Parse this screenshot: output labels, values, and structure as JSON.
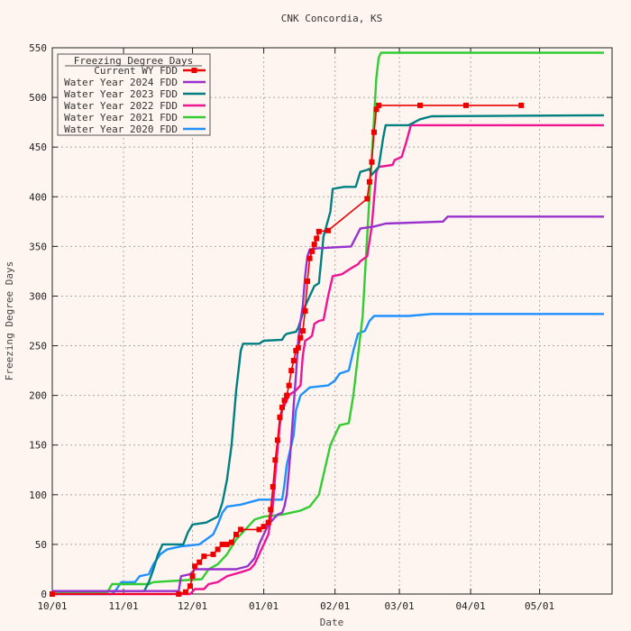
{
  "chart_data": {
    "type": "line",
    "title": "CNK Concordia, KS",
    "xlabel": "Date",
    "ylabel": "Freezing Degree Days",
    "xlim": [
      "10/01",
      "end"
    ],
    "ylim": [
      0,
      550
    ],
    "yticks": [
      0,
      50,
      100,
      150,
      200,
      250,
      300,
      350,
      400,
      450,
      500,
      550
    ],
    "xticks": [
      "10/01",
      "11/01",
      "12/01",
      "01/01",
      "02/01",
      "03/01",
      "04/01",
      "05/01"
    ],
    "grid": true,
    "legend": {
      "title": "Freezing Degree Days",
      "placement": "top-left"
    },
    "series": [
      {
        "name": "Current WY FDD",
        "color": "#ee0000",
        "markers": true,
        "points": [
          [
            0,
            0
          ],
          [
            55,
            0
          ],
          [
            58,
            2
          ],
          [
            60,
            8
          ],
          [
            61,
            18
          ],
          [
            62,
            28
          ],
          [
            64,
            32
          ],
          [
            66,
            38
          ],
          [
            70,
            40
          ],
          [
            72,
            45
          ],
          [
            74,
            50
          ],
          [
            76,
            50
          ],
          [
            78,
            52
          ],
          [
            80,
            60
          ],
          [
            82,
            65
          ],
          [
            90,
            65
          ],
          [
            92,
            68
          ],
          [
            94,
            72
          ],
          [
            95,
            85
          ],
          [
            96,
            108
          ],
          [
            97,
            135
          ],
          [
            98,
            155
          ],
          [
            99,
            178
          ],
          [
            100,
            188
          ],
          [
            101,
            195
          ],
          [
            102,
            200
          ],
          [
            103,
            210
          ],
          [
            104,
            225
          ],
          [
            105,
            235
          ],
          [
            106,
            245
          ],
          [
            107,
            248
          ],
          [
            108,
            258
          ],
          [
            109,
            265
          ],
          [
            110,
            285
          ],
          [
            111,
            315
          ],
          [
            112,
            338
          ],
          [
            113,
            345
          ],
          [
            114,
            352
          ],
          [
            115,
            358
          ],
          [
            116,
            365
          ],
          [
            120,
            366
          ],
          [
            137,
            398
          ],
          [
            138,
            415
          ],
          [
            139,
            435
          ],
          [
            140,
            465
          ],
          [
            141,
            488
          ],
          [
            142,
            492
          ],
          [
            160,
            492
          ],
          [
            180,
            492
          ],
          [
            204,
            492
          ]
        ]
      },
      {
        "name": "Water Year 2024 FDD",
        "color": "#9932cc",
        "markers": false,
        "points": [
          [
            0,
            3
          ],
          [
            55,
            3
          ],
          [
            56,
            18
          ],
          [
            60,
            20
          ],
          [
            62,
            25
          ],
          [
            80,
            25
          ],
          [
            85,
            28
          ],
          [
            88,
            36
          ],
          [
            90,
            50
          ],
          [
            92,
            60
          ],
          [
            94,
            70
          ],
          [
            96,
            75
          ],
          [
            98,
            80
          ],
          [
            100,
            82
          ],
          [
            101,
            88
          ],
          [
            102,
            100
          ],
          [
            103,
            125
          ],
          [
            104,
            155
          ],
          [
            105,
            190
          ],
          [
            106,
            220
          ],
          [
            107,
            255
          ],
          [
            108,
            275
          ],
          [
            109,
            290
          ],
          [
            110,
            320
          ],
          [
            111,
            340
          ],
          [
            112,
            347
          ],
          [
            115,
            348
          ],
          [
            130,
            350
          ],
          [
            134,
            368
          ],
          [
            140,
            370
          ],
          [
            145,
            373
          ],
          [
            170,
            375
          ],
          [
            172,
            380
          ],
          [
            240,
            380
          ]
        ]
      },
      {
        "name": "Water Year 2023 FDD",
        "color": "#008080",
        "markers": false,
        "points": [
          [
            0,
            3
          ],
          [
            40,
            3
          ],
          [
            42,
            12
          ],
          [
            44,
            25
          ],
          [
            46,
            40
          ],
          [
            48,
            50
          ],
          [
            57,
            50
          ],
          [
            59,
            62
          ],
          [
            61,
            70
          ],
          [
            67,
            72
          ],
          [
            72,
            78
          ],
          [
            74,
            92
          ],
          [
            76,
            115
          ],
          [
            78,
            150
          ],
          [
            80,
            205
          ],
          [
            82,
            245
          ],
          [
            83,
            252
          ],
          [
            90,
            252
          ],
          [
            92,
            255
          ],
          [
            100,
            256
          ],
          [
            101,
            260
          ],
          [
            102,
            262
          ],
          [
            106,
            264
          ],
          [
            107,
            268
          ],
          [
            108,
            275
          ],
          [
            110,
            290
          ],
          [
            112,
            300
          ],
          [
            114,
            310
          ],
          [
            116,
            313
          ],
          [
            118,
            360
          ],
          [
            121,
            385
          ],
          [
            122,
            408
          ],
          [
            127,
            410
          ],
          [
            132,
            410
          ],
          [
            134,
            425
          ],
          [
            137,
            427
          ],
          [
            138,
            428
          ],
          [
            139,
            422
          ],
          [
            142,
            430
          ],
          [
            144,
            460
          ],
          [
            145,
            472
          ],
          [
            155,
            472
          ],
          [
            160,
            478
          ],
          [
            165,
            481
          ],
          [
            240,
            482
          ]
        ]
      },
      {
        "name": "Water Year 2022 FDD",
        "color": "#ee1493",
        "markers": false,
        "points": [
          [
            0,
            0
          ],
          [
            60,
            0
          ],
          [
            62,
            5
          ],
          [
            66,
            5
          ],
          [
            68,
            10
          ],
          [
            72,
            12
          ],
          [
            76,
            18
          ],
          [
            79,
            20
          ],
          [
            82,
            22
          ],
          [
            86,
            25
          ],
          [
            88,
            30
          ],
          [
            90,
            40
          ],
          [
            92,
            50
          ],
          [
            94,
            60
          ],
          [
            96,
            90
          ],
          [
            97,
            120
          ],
          [
            98,
            145
          ],
          [
            99,
            170
          ],
          [
            100,
            185
          ],
          [
            101,
            190
          ],
          [
            102,
            195
          ],
          [
            103,
            200
          ],
          [
            104,
            202
          ],
          [
            106,
            205
          ],
          [
            108,
            210
          ],
          [
            109,
            240
          ],
          [
            110,
            255
          ],
          [
            112,
            258
          ],
          [
            113,
            260
          ],
          [
            114,
            272
          ],
          [
            116,
            275
          ],
          [
            118,
            276
          ],
          [
            120,
            300
          ],
          [
            122,
            320
          ],
          [
            126,
            322
          ],
          [
            130,
            328
          ],
          [
            133,
            332
          ],
          [
            134,
            335
          ],
          [
            137,
            340
          ],
          [
            139,
            370
          ],
          [
            141,
            425
          ],
          [
            142,
            430
          ],
          [
            148,
            432
          ],
          [
            149,
            437
          ],
          [
            152,
            440
          ],
          [
            154,
            455
          ],
          [
            156,
            472
          ],
          [
            240,
            472
          ]
        ]
      },
      {
        "name": "Water Year 2021 FDD",
        "color": "#32cd32",
        "markers": false,
        "points": [
          [
            0,
            2
          ],
          [
            24,
            2
          ],
          [
            26,
            10
          ],
          [
            42,
            10
          ],
          [
            44,
            12
          ],
          [
            65,
            15
          ],
          [
            68,
            25
          ],
          [
            72,
            30
          ],
          [
            76,
            40
          ],
          [
            80,
            55
          ],
          [
            82,
            60
          ],
          [
            84,
            65
          ],
          [
            86,
            70
          ],
          [
            88,
            75
          ],
          [
            92,
            78
          ],
          [
            100,
            80
          ],
          [
            104,
            82
          ],
          [
            108,
            84
          ],
          [
            112,
            88
          ],
          [
            116,
            100
          ],
          [
            119,
            130
          ],
          [
            121,
            150
          ],
          [
            123,
            160
          ],
          [
            125,
            170
          ],
          [
            129,
            172
          ],
          [
            131,
            200
          ],
          [
            133,
            240
          ],
          [
            135,
            280
          ],
          [
            136,
            320
          ],
          [
            137,
            360
          ],
          [
            138,
            400
          ],
          [
            139,
            440
          ],
          [
            140,
            480
          ],
          [
            141,
            520
          ],
          [
            142,
            540
          ],
          [
            143,
            545
          ],
          [
            240,
            545
          ]
        ]
      },
      {
        "name": "Water Year 2020 FDD",
        "color": "#1e90ff",
        "markers": false,
        "points": [
          [
            0,
            0
          ],
          [
            26,
            0
          ],
          [
            28,
            5
          ],
          [
            30,
            12
          ],
          [
            36,
            12
          ],
          [
            38,
            18
          ],
          [
            42,
            20
          ],
          [
            44,
            30
          ],
          [
            47,
            40
          ],
          [
            50,
            45
          ],
          [
            56,
            48
          ],
          [
            64,
            50
          ],
          [
            67,
            55
          ],
          [
            70,
            60
          ],
          [
            72,
            70
          ],
          [
            74,
            82
          ],
          [
            76,
            88
          ],
          [
            82,
            90
          ],
          [
            90,
            95
          ],
          [
            100,
            95
          ],
          [
            101,
            110
          ],
          [
            102,
            130
          ],
          [
            104,
            150
          ],
          [
            105,
            160
          ],
          [
            106,
            185
          ],
          [
            108,
            200
          ],
          [
            112,
            208
          ],
          [
            120,
            210
          ],
          [
            123,
            215
          ],
          [
            125,
            222
          ],
          [
            129,
            225
          ],
          [
            131,
            245
          ],
          [
            133,
            262
          ],
          [
            136,
            265
          ],
          [
            138,
            275
          ],
          [
            140,
            280
          ],
          [
            155,
            280
          ],
          [
            165,
            282
          ],
          [
            240,
            282
          ]
        ]
      }
    ]
  }
}
